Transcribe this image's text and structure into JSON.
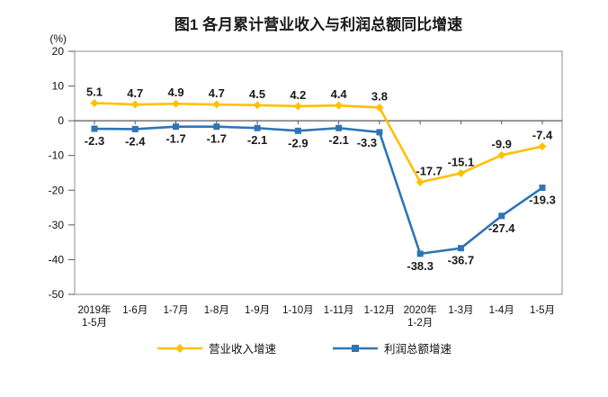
{
  "title": "图1  各月累计营业收入与利润总额同比增速",
  "y_unit_label": "(%)",
  "chart_data": {
    "type": "line",
    "categories": [
      [
        "2019年",
        "1-5月"
      ],
      [
        "1-6月"
      ],
      [
        "1-7月"
      ],
      [
        "1-8月"
      ],
      [
        "1-9月"
      ],
      [
        "1-10月"
      ],
      [
        "1-11月"
      ],
      [
        "1-12月"
      ],
      [
        "2020年",
        "1-2月"
      ],
      [
        "1-3月"
      ],
      [
        "1-4月"
      ],
      [
        "1-5月"
      ]
    ],
    "series": [
      {
        "name": "营业收入增速",
        "color": "#FFC000",
        "marker": "diamond",
        "label_position": "above",
        "values": [
          5.1,
          4.7,
          4.9,
          4.7,
          4.5,
          4.2,
          4.4,
          3.8,
          -17.7,
          -15.1,
          -9.9,
          -7.4
        ]
      },
      {
        "name": "利润总额增速",
        "color": "#2E75B6",
        "marker": "square",
        "label_position": "below",
        "values": [
          -2.3,
          -2.4,
          -1.7,
          -1.7,
          -2.1,
          -2.9,
          -2.1,
          -3.3,
          -38.3,
          -36.7,
          -27.4,
          -19.3
        ]
      }
    ],
    "yaxis": {
      "min": -50,
      "max": 20,
      "ticks": [
        20,
        10,
        0,
        -10,
        -20,
        -30,
        -40,
        -50
      ]
    },
    "grid": false,
    "zero_line": true,
    "legend_position": "bottom",
    "axis_color": "#8c8c8c",
    "zero_line_color": "#595959",
    "label_color": "#1a1a1a"
  }
}
